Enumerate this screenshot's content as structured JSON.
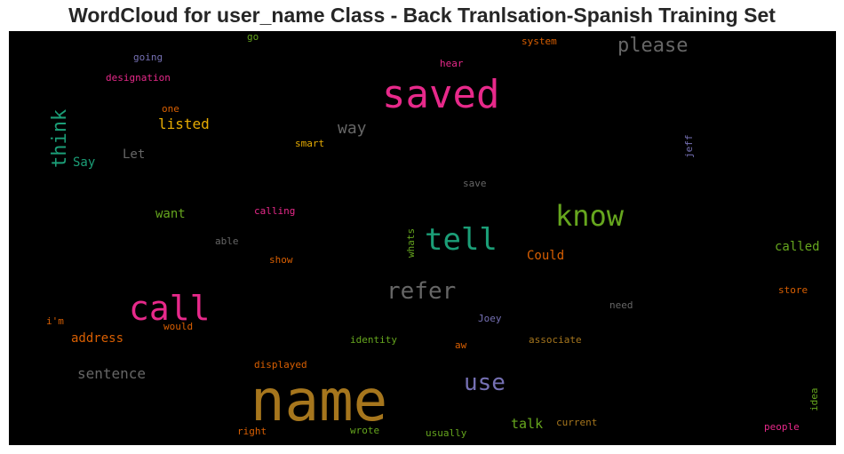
{
  "chart_data": {
    "type": "wordcloud",
    "title": "WordCloud for user_name Class - Back Tranlsation-Spanish Training Set",
    "words": [
      {
        "text": "name",
        "color": "#a6761d"
      },
      {
        "text": "saved",
        "color": "#e7298a"
      },
      {
        "text": "call",
        "color": "#e7298a"
      },
      {
        "text": "tell",
        "color": "#1b9e77"
      },
      {
        "text": "know",
        "color": "#66a61e"
      },
      {
        "text": "refer",
        "color": "#666666"
      },
      {
        "text": "use",
        "color": "#7570b3"
      },
      {
        "text": "please",
        "color": "#666666"
      },
      {
        "text": "think",
        "color": "#1b9e77",
        "vertical": true
      },
      {
        "text": "way",
        "color": "#666666"
      },
      {
        "text": "listed",
        "color": "#e6ab02"
      },
      {
        "text": "Say",
        "color": "#1b9e77"
      },
      {
        "text": "Let",
        "color": "#666666"
      },
      {
        "text": "want",
        "color": "#66a61e"
      },
      {
        "text": "Could",
        "color": "#d95f02"
      },
      {
        "text": "called",
        "color": "#66a61e"
      },
      {
        "text": "address",
        "color": "#d95f02"
      },
      {
        "text": "sentence",
        "color": "#666666"
      },
      {
        "text": "talk",
        "color": "#66a61e"
      },
      {
        "text": "go",
        "color": "#66a61e"
      },
      {
        "text": "system",
        "color": "#d95f02"
      },
      {
        "text": "going",
        "color": "#7570b3"
      },
      {
        "text": "hear",
        "color": "#e7298a"
      },
      {
        "text": "designation",
        "color": "#e7298a"
      },
      {
        "text": "one",
        "color": "#d95f02"
      },
      {
        "text": "jeff",
        "color": "#7570b3",
        "vertical": true
      },
      {
        "text": "smart",
        "color": "#e6ab02"
      },
      {
        "text": "save",
        "color": "#666666"
      },
      {
        "text": "calling",
        "color": "#e7298a"
      },
      {
        "text": "whats",
        "color": "#66a61e",
        "vertical": true
      },
      {
        "text": "able",
        "color": "#666666"
      },
      {
        "text": "show",
        "color": "#d95f02"
      },
      {
        "text": "i'm",
        "color": "#d95f02"
      },
      {
        "text": "would",
        "color": "#d95f02"
      },
      {
        "text": "Joey",
        "color": "#7570b3"
      },
      {
        "text": "need",
        "color": "#666666"
      },
      {
        "text": "store",
        "color": "#d95f02"
      },
      {
        "text": "identity",
        "color": "#66a61e"
      },
      {
        "text": "aw",
        "color": "#d95f02"
      },
      {
        "text": "associate",
        "color": "#a6761d"
      },
      {
        "text": "displayed",
        "color": "#d95f02"
      },
      {
        "text": "idea",
        "color": "#66a61e",
        "vertical": true
      },
      {
        "text": "current",
        "color": "#a6761d"
      },
      {
        "text": "right",
        "color": "#d95f02"
      },
      {
        "text": "wrote",
        "color": "#66a61e"
      },
      {
        "text": "usually",
        "color": "#66a61e"
      },
      {
        "text": "people",
        "color": "#e7298a"
      }
    ]
  }
}
